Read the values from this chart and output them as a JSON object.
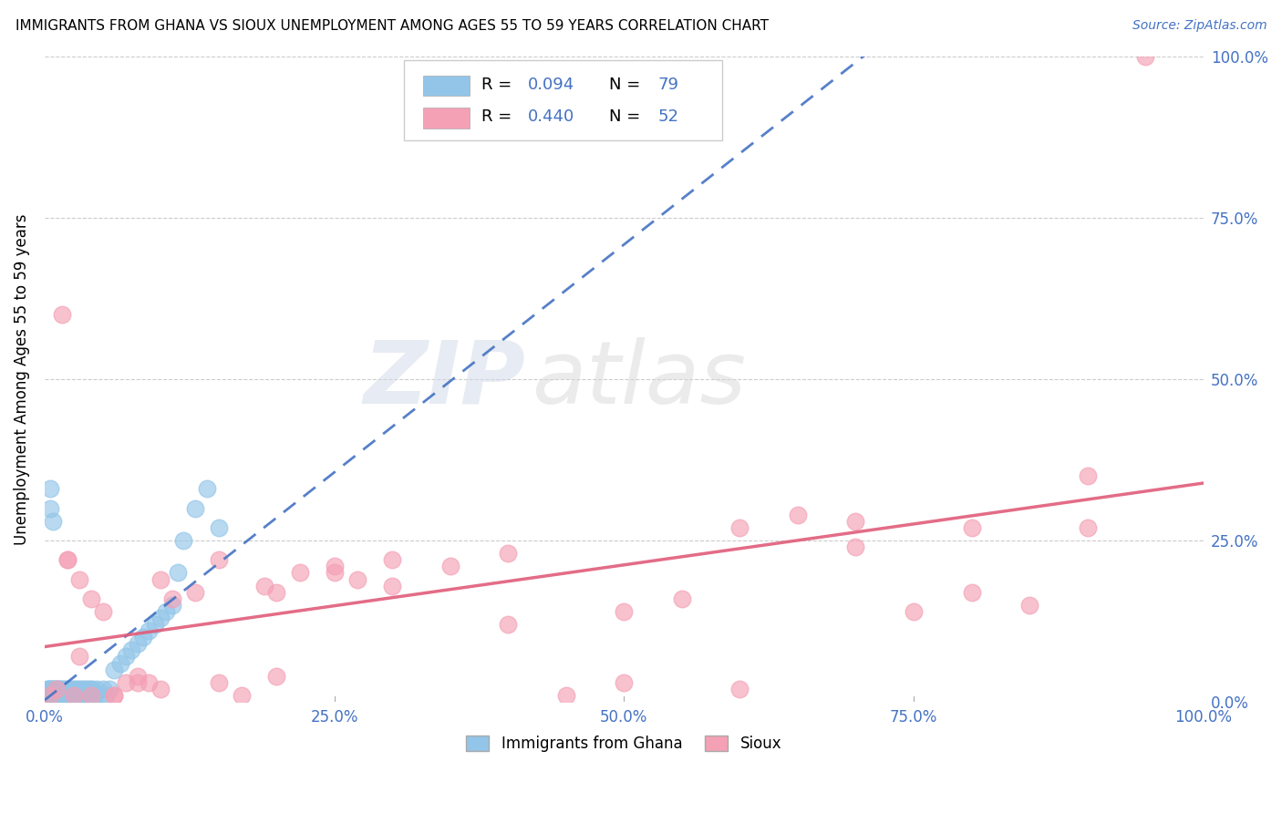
{
  "title": "IMMIGRANTS FROM GHANA VS SIOUX UNEMPLOYMENT AMONG AGES 55 TO 59 YEARS CORRELATION CHART",
  "source": "Source: ZipAtlas.com",
  "ylabel": "Unemployment Among Ages 55 to 59 years",
  "xlim": [
    0.0,
    1.0
  ],
  "ylim": [
    0.0,
    1.0
  ],
  "ghana_color": "#92C5E8",
  "sioux_color": "#F4A0B5",
  "ghana_line_color": "#4472C4",
  "sioux_line_color": "#E05C7A",
  "ghana_R": 0.094,
  "ghana_N": 79,
  "sioux_R": 0.44,
  "sioux_N": 52,
  "watermark_zip": "ZIP",
  "watermark_atlas": "atlas",
  "background_color": "#FFFFFF",
  "grid_color": "#CCCCCC",
  "tick_color": "#4472C4",
  "ghana_scatter_x": [
    0.001,
    0.002,
    0.002,
    0.003,
    0.003,
    0.004,
    0.004,
    0.005,
    0.005,
    0.006,
    0.006,
    0.007,
    0.007,
    0.008,
    0.008,
    0.009,
    0.009,
    0.01,
    0.01,
    0.011,
    0.011,
    0.012,
    0.012,
    0.013,
    0.013,
    0.014,
    0.015,
    0.015,
    0.016,
    0.017,
    0.018,
    0.019,
    0.02,
    0.021,
    0.022,
    0.023,
    0.024,
    0.025,
    0.026,
    0.027,
    0.028,
    0.029,
    0.03,
    0.031,
    0.032,
    0.033,
    0.034,
    0.035,
    0.036,
    0.037,
    0.038,
    0.039,
    0.04,
    0.041,
    0.043,
    0.045,
    0.047,
    0.05,
    0.053,
    0.056,
    0.06,
    0.065,
    0.07,
    0.075,
    0.08,
    0.085,
    0.09,
    0.095,
    0.1,
    0.105,
    0.11,
    0.115,
    0.12,
    0.13,
    0.14,
    0.15,
    0.005,
    0.005,
    0.007
  ],
  "ghana_scatter_y": [
    0.01,
    0.02,
    0.01,
    0.02,
    0.01,
    0.02,
    0.01,
    0.02,
    0.01,
    0.02,
    0.01,
    0.02,
    0.01,
    0.02,
    0.01,
    0.02,
    0.01,
    0.02,
    0.01,
    0.02,
    0.01,
    0.02,
    0.01,
    0.02,
    0.01,
    0.02,
    0.01,
    0.02,
    0.01,
    0.02,
    0.01,
    0.02,
    0.01,
    0.02,
    0.01,
    0.02,
    0.01,
    0.02,
    0.01,
    0.02,
    0.01,
    0.02,
    0.01,
    0.02,
    0.01,
    0.02,
    0.01,
    0.02,
    0.01,
    0.02,
    0.01,
    0.02,
    0.01,
    0.02,
    0.01,
    0.02,
    0.01,
    0.02,
    0.01,
    0.02,
    0.05,
    0.06,
    0.07,
    0.08,
    0.09,
    0.1,
    0.11,
    0.12,
    0.13,
    0.14,
    0.15,
    0.2,
    0.25,
    0.3,
    0.33,
    0.27,
    0.3,
    0.33,
    0.28
  ],
  "sioux_scatter_x": [
    0.005,
    0.01,
    0.015,
    0.02,
    0.025,
    0.03,
    0.04,
    0.05,
    0.06,
    0.07,
    0.08,
    0.09,
    0.1,
    0.11,
    0.13,
    0.15,
    0.17,
    0.19,
    0.2,
    0.22,
    0.25,
    0.27,
    0.3,
    0.35,
    0.4,
    0.45,
    0.5,
    0.55,
    0.6,
    0.65,
    0.7,
    0.75,
    0.8,
    0.85,
    0.9,
    0.02,
    0.03,
    0.04,
    0.06,
    0.08,
    0.1,
    0.15,
    0.2,
    0.25,
    0.3,
    0.4,
    0.5,
    0.6,
    0.7,
    0.8,
    0.9,
    0.95
  ],
  "sioux_scatter_y": [
    0.01,
    0.02,
    0.6,
    0.22,
    0.01,
    0.19,
    0.16,
    0.14,
    0.01,
    0.03,
    0.04,
    0.03,
    0.19,
    0.16,
    0.17,
    0.22,
    0.01,
    0.18,
    0.17,
    0.2,
    0.21,
    0.19,
    0.22,
    0.21,
    0.23,
    0.01,
    0.14,
    0.16,
    0.27,
    0.29,
    0.24,
    0.14,
    0.17,
    0.15,
    0.27,
    0.22,
    0.07,
    0.01,
    0.01,
    0.03,
    0.02,
    0.03,
    0.04,
    0.2,
    0.18,
    0.12,
    0.03,
    0.02,
    0.28,
    0.27,
    0.35,
    1.0
  ]
}
